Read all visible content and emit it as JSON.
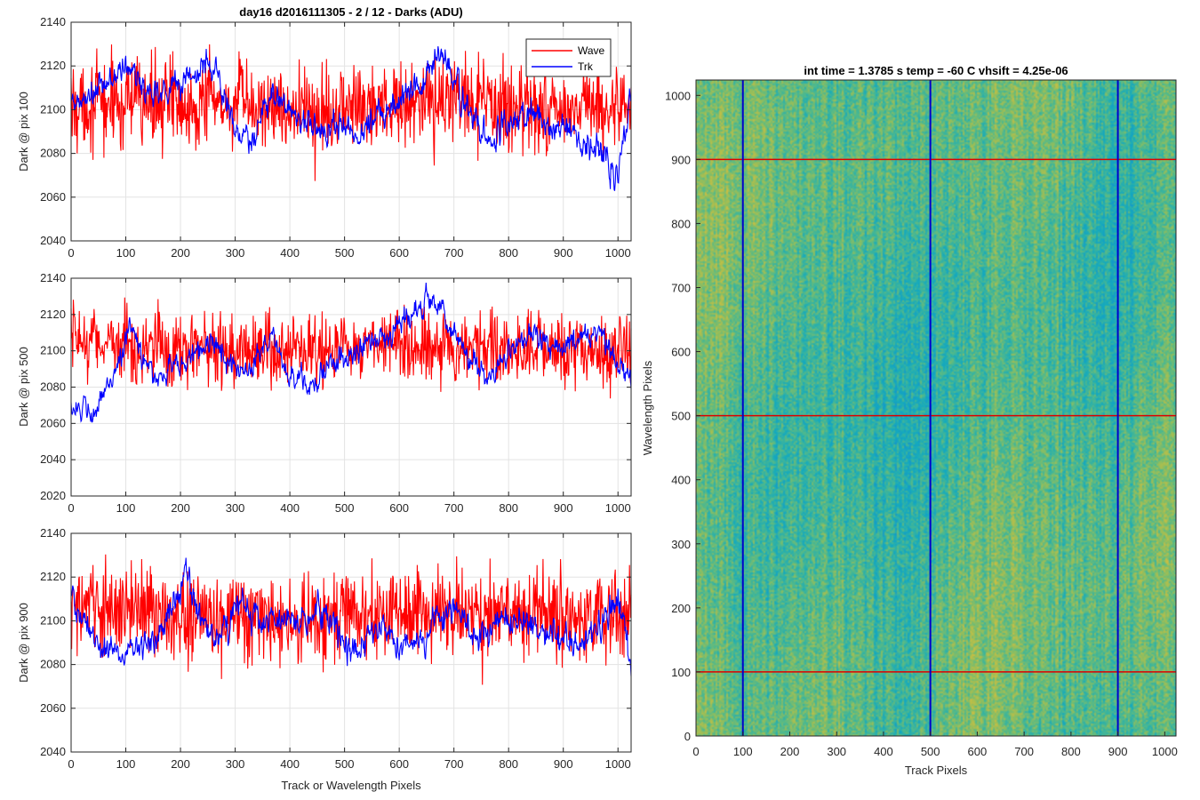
{
  "figure": {
    "suptitle": "day16 d2016111305 - 2 / 12 - Darks (ADU)"
  },
  "chart_data": [
    {
      "type": "line",
      "xlabel": "",
      "ylabel": "Dark @ pix 100",
      "xlim": [
        0,
        1024
      ],
      "ylim": [
        2040,
        2140
      ],
      "xticks": [
        0,
        100,
        200,
        300,
        400,
        500,
        600,
        700,
        800,
        900,
        1000
      ],
      "yticks": [
        2040,
        2060,
        2080,
        2100,
        2120,
        2140
      ],
      "grid": true,
      "legend": {
        "location": "top-right",
        "entries": [
          "Wave",
          "Trk"
        ]
      },
      "series": [
        {
          "name": "Wave",
          "color": "#ff0000",
          "mean": 2103,
          "noise": 14,
          "trend": [
            [
              0,
              2102
            ],
            [
              200,
              2104
            ],
            [
              400,
              2100
            ],
            [
              600,
              2103
            ],
            [
              800,
              2102
            ],
            [
              1024,
              2100
            ]
          ]
        },
        {
          "name": "Trk",
          "color": "#0000ff",
          "mean": 2102,
          "noise": 6,
          "trend": [
            [
              0,
              2100
            ],
            [
              60,
              2110
            ],
            [
              100,
              2120
            ],
            [
              140,
              2108
            ],
            [
              200,
              2112
            ],
            [
              260,
              2122
            ],
            [
              300,
              2090
            ],
            [
              330,
              2084
            ],
            [
              370,
              2108
            ],
            [
              400,
              2100
            ],
            [
              450,
              2090
            ],
            [
              480,
              2094
            ],
            [
              530,
              2088
            ],
            [
              560,
              2100
            ],
            [
              600,
              2104
            ],
            [
              650,
              2118
            ],
            [
              680,
              2125
            ],
            [
              720,
              2102
            ],
            [
              760,
              2085
            ],
            [
              800,
              2095
            ],
            [
              850,
              2098
            ],
            [
              900,
              2090
            ],
            [
              950,
              2085
            ],
            [
              1000,
              2072
            ],
            [
              1024,
              2108
            ]
          ]
        }
      ]
    },
    {
      "type": "line",
      "xlabel": "",
      "ylabel": "Dark @ pix 500",
      "xlim": [
        0,
        1024
      ],
      "ylim": [
        2020,
        2140
      ],
      "xticks": [
        0,
        100,
        200,
        300,
        400,
        500,
        600,
        700,
        800,
        900,
        1000
      ],
      "yticks": [
        2020,
        2040,
        2060,
        2080,
        2100,
        2120,
        2140
      ],
      "grid": true,
      "series": [
        {
          "name": "Wave",
          "color": "#ff0000",
          "mean": 2102,
          "noise": 14,
          "trend": [
            [
              0,
              2106
            ],
            [
              200,
              2102
            ],
            [
              400,
              2098
            ],
            [
              600,
              2104
            ],
            [
              800,
              2100
            ],
            [
              1024,
              2100
            ]
          ]
        },
        {
          "name": "Trk",
          "color": "#0000ff",
          "mean": 2095,
          "noise": 6,
          "trend": [
            [
              0,
              2072
            ],
            [
              40,
              2062
            ],
            [
              80,
              2090
            ],
            [
              110,
              2112
            ],
            [
              150,
              2085
            ],
            [
              200,
              2093
            ],
            [
              260,
              2105
            ],
            [
              300,
              2090
            ],
            [
              330,
              2092
            ],
            [
              370,
              2108
            ],
            [
              400,
              2085
            ],
            [
              440,
              2082
            ],
            [
              470,
              2090
            ],
            [
              520,
              2100
            ],
            [
              560,
              2108
            ],
            [
              620,
              2118
            ],
            [
              660,
              2132
            ],
            [
              700,
              2110
            ],
            [
              740,
              2092
            ],
            [
              760,
              2080
            ],
            [
              800,
              2098
            ],
            [
              850,
              2110
            ],
            [
              880,
              2100
            ],
            [
              920,
              2105
            ],
            [
              960,
              2110
            ],
            [
              1024,
              2082
            ]
          ]
        }
      ]
    },
    {
      "type": "line",
      "xlabel": "Track or Wavelength Pixels",
      "ylabel": "Dark @ pix 900",
      "xlim": [
        0,
        1024
      ],
      "ylim": [
        2040,
        2140
      ],
      "xticks": [
        0,
        100,
        200,
        300,
        400,
        500,
        600,
        700,
        800,
        900,
        1000
      ],
      "yticks": [
        2040,
        2060,
        2080,
        2100,
        2120,
        2140
      ],
      "grid": true,
      "series": [
        {
          "name": "Wave",
          "color": "#ff0000",
          "mean": 2103,
          "noise": 14,
          "trend": [
            [
              0,
              2106
            ],
            [
              200,
              2103
            ],
            [
              400,
              2100
            ],
            [
              600,
              2104
            ],
            [
              800,
              2104
            ],
            [
              1024,
              2102
            ]
          ]
        },
        {
          "name": "Trk",
          "color": "#0000ff",
          "mean": 2094,
          "noise": 6,
          "trend": [
            [
              0,
              2112
            ],
            [
              40,
              2090
            ],
            [
              100,
              2085
            ],
            [
              150,
              2092
            ],
            [
              210,
              2120
            ],
            [
              240,
              2100
            ],
            [
              270,
              2090
            ],
            [
              310,
              2108
            ],
            [
              350,
              2100
            ],
            [
              400,
              2098
            ],
            [
              450,
              2104
            ],
            [
              490,
              2095
            ],
            [
              520,
              2085
            ],
            [
              560,
              2100
            ],
            [
              600,
              2090
            ],
            [
              650,
              2092
            ],
            [
              700,
              2106
            ],
            [
              740,
              2090
            ],
            [
              800,
              2102
            ],
            [
              850,
              2098
            ],
            [
              900,
              2090
            ],
            [
              950,
              2094
            ],
            [
              1000,
              2110
            ],
            [
              1024,
              2082
            ]
          ]
        }
      ]
    },
    {
      "type": "heatmap",
      "title": "int time = 1.3785 s    temp = -60 C    vhsift = 4.25e-06",
      "xlabel": "Track Pixels",
      "ylabel": "Wavelength Pixels",
      "xlim": [
        0,
        1024
      ],
      "ylim": [
        0,
        1024
      ],
      "xticks": [
        0,
        100,
        200,
        300,
        400,
        500,
        600,
        700,
        800,
        900,
        1000
      ],
      "yticks": [
        0,
        100,
        200,
        300,
        400,
        500,
        600,
        700,
        800,
        900,
        1000
      ],
      "colormap": "parula",
      "colorbar_shown": false,
      "vertical_markers": {
        "color": "#0000cc",
        "x": [
          100,
          500,
          900
        ]
      },
      "horizontal_markers": {
        "color": "#dd0000",
        "y": [
          100,
          500,
          900
        ]
      }
    }
  ]
}
